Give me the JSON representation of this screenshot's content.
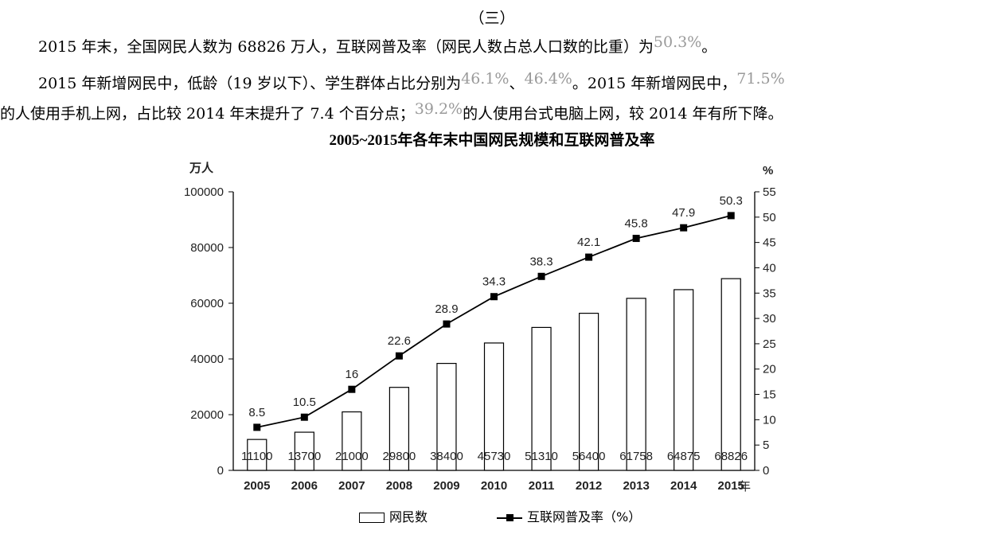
{
  "text": {
    "heading": "（三）",
    "p1": "2015 年末，全国网民人数为 68826 万人，互联网普及率（网民人数占总人口数的比重）为",
    "p1_hl": "50.3%",
    "p1_end": "。",
    "p2_a": "2015 年新增网民中，低龄（19 岁以下）、学生群体占比分别为",
    "p2_hl1": "46.1%",
    "p2_sep": "、",
    "p2_hl2": "46.4%",
    "p2_b": "。2015 年新增网民中，",
    "p2_hl3": "71.5%",
    "p3_a": "的人使用手机上网，占比较 2014 年末提升了 7.4 个百分点；",
    "p3_hl": "39.2%",
    "p3_b": "的人使用台式电脑上网，较 2014 年有所下降。"
  },
  "chart_data": {
    "type": "bar",
    "title": "2005~2015年各年末中国网民规模和互联网普及率",
    "categories": [
      "2005",
      "2006",
      "2007",
      "2008",
      "2009",
      "2010",
      "2011",
      "2012",
      "2013",
      "2014",
      "2015"
    ],
    "series": [
      {
        "name": "网民数",
        "type": "bar",
        "axis": "left",
        "values": [
          11100,
          13700,
          21000,
          29800,
          38400,
          45730,
          51310,
          56400,
          61758,
          64875,
          68826
        ]
      },
      {
        "name": "互联网普及率（%）",
        "type": "line",
        "axis": "right",
        "values": [
          8.5,
          10.5,
          16,
          22.6,
          28.9,
          34.3,
          38.3,
          42.1,
          45.8,
          47.9,
          50.3
        ]
      }
    ],
    "bar_labels": [
      "11100",
      "13700",
      "21000",
      "29800",
      "38400",
      "45730",
      "51310",
      "56400",
      "61758",
      "64875",
      "68826"
    ],
    "line_labels": [
      "8.5",
      "10.5",
      "16",
      "22.6",
      "28.9",
      "34.3",
      "38.3",
      "42.1",
      "45.8",
      "47.9",
      "50.3"
    ],
    "ylabel_left": "万人",
    "ylabel_right": "%",
    "xlabel": "年",
    "ylim_left": [
      0,
      100000
    ],
    "ylim_right": [
      0,
      55
    ],
    "yticks_left": [
      "0",
      "20000",
      "40000",
      "60000",
      "80000",
      "100000"
    ],
    "yticks_right": [
      "0",
      "5",
      "10",
      "15",
      "20",
      "25",
      "30",
      "35",
      "40",
      "45",
      "50",
      "55"
    ],
    "grid": false,
    "legend_position": "bottom"
  }
}
